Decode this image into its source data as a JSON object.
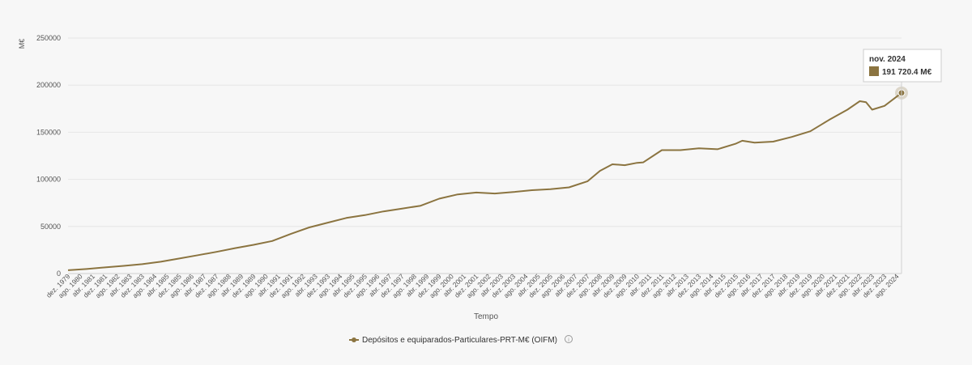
{
  "chart_data": {
    "type": "line",
    "ylabel": "M€",
    "xlabel": "Tempo",
    "ylim": [
      0,
      250000
    ],
    "yticks": [
      0,
      50000,
      100000,
      150000,
      200000,
      250000
    ],
    "ytick_labels": [
      "0",
      "50000",
      "100000",
      "150000",
      "200000",
      "250000"
    ],
    "x_tick_labels": [
      "dez. 1979",
      "ago. 1980",
      "abr. 1981",
      "dez. 1981",
      "ago. 1982",
      "abr. 1983",
      "dez. 1983",
      "ago. 1984",
      "abr. 1985",
      "dez. 1985",
      "ago. 1986",
      "abr. 1987",
      "dez. 1987",
      "ago. 1988",
      "abr. 1989",
      "dez. 1989",
      "ago. 1990",
      "abr. 1991",
      "dez. 1991",
      "ago. 1992",
      "abr. 1993",
      "dez. 1993",
      "ago. 1994",
      "abr. 1995",
      "dez. 1995",
      "ago. 1996",
      "abr. 1997",
      "dez. 1997",
      "ago. 1998",
      "abr. 1999",
      "dez. 1999",
      "ago. 2000",
      "abr. 2001",
      "dez. 2001",
      "ago. 2002",
      "abr. 2003",
      "dez. 2003",
      "ago. 2004",
      "abr. 2005",
      "dez. 2005",
      "ago. 2006",
      "abr. 2007",
      "dez. 2007",
      "ago. 2008",
      "abr. 2009",
      "dez. 2009",
      "ago. 2010",
      "abr. 2011",
      "dez. 2011",
      "ago. 2012",
      "abr. 2013",
      "dez. 2013",
      "ago. 2014",
      "abr. 2015",
      "dez. 2015",
      "ago. 2016",
      "abr. 2017",
      "dez. 2017",
      "ago. 2018",
      "abr. 2019",
      "dez. 2019",
      "ago. 2020",
      "abr. 2021",
      "dez. 2021",
      "ago. 2022",
      "abr. 2023",
      "dez. 2023",
      "ago. 2024"
    ],
    "grid": true,
    "legend_position": "bottom-center",
    "series": [
      {
        "name": "Depósitos e equiparados-Particulares-PRT-M€ (OIFM)",
        "color": "#8b7440",
        "x": [
          "dez. 1979",
          "dez. 1980",
          "dez. 1981",
          "dez. 1982",
          "dez. 1983",
          "dez. 1984",
          "dez. 1985",
          "dez. 1986",
          "dez. 1987",
          "dez. 1988",
          "dez. 1989",
          "dez. 1990",
          "dez. 1991",
          "dez. 1992",
          "dez. 1993",
          "dez. 1994",
          "dez. 1995",
          "dez. 1996",
          "dez. 1997",
          "dez. 1998",
          "dez. 1999",
          "dez. 2000",
          "dez. 2001",
          "dez. 2002",
          "dez. 2003",
          "dez. 2004",
          "dez. 2005",
          "dez. 2006",
          "dez. 2007",
          "ago. 2008",
          "abr. 2009",
          "dez. 2009",
          "ago. 2010",
          "dez. 2010",
          "dez. 2011",
          "dez. 2012",
          "dez. 2013",
          "dez. 2014",
          "dez. 2015",
          "abr. 2016",
          "dez. 2016",
          "dez. 2017",
          "dez. 2018",
          "dez. 2019",
          "dez. 2020",
          "dez. 2021",
          "ago. 2022",
          "dez. 2022",
          "abr. 2023",
          "dez. 2023",
          "ago. 2024",
          "nov. 2024"
        ],
        "values": [
          3500,
          4800,
          6500,
          8200,
          10000,
          12500,
          16000,
          19500,
          23000,
          27000,
          30500,
          34500,
          42000,
          49000,
          54000,
          59000,
          62000,
          66000,
          69000,
          72000,
          79500,
          84000,
          86000,
          85000,
          86500,
          88500,
          89500,
          91500,
          98000,
          109000,
          116000,
          115000,
          117500,
          118000,
          131000,
          131000,
          133000,
          132000,
          138000,
          141000,
          139000,
          140000,
          145000,
          151000,
          163000,
          174000,
          183000,
          182000,
          174000,
          178000,
          188000,
          191720.4
        ]
      }
    ],
    "tooltip": {
      "date": "nov. 2024",
      "value_label": "191 720.4 M€"
    }
  }
}
